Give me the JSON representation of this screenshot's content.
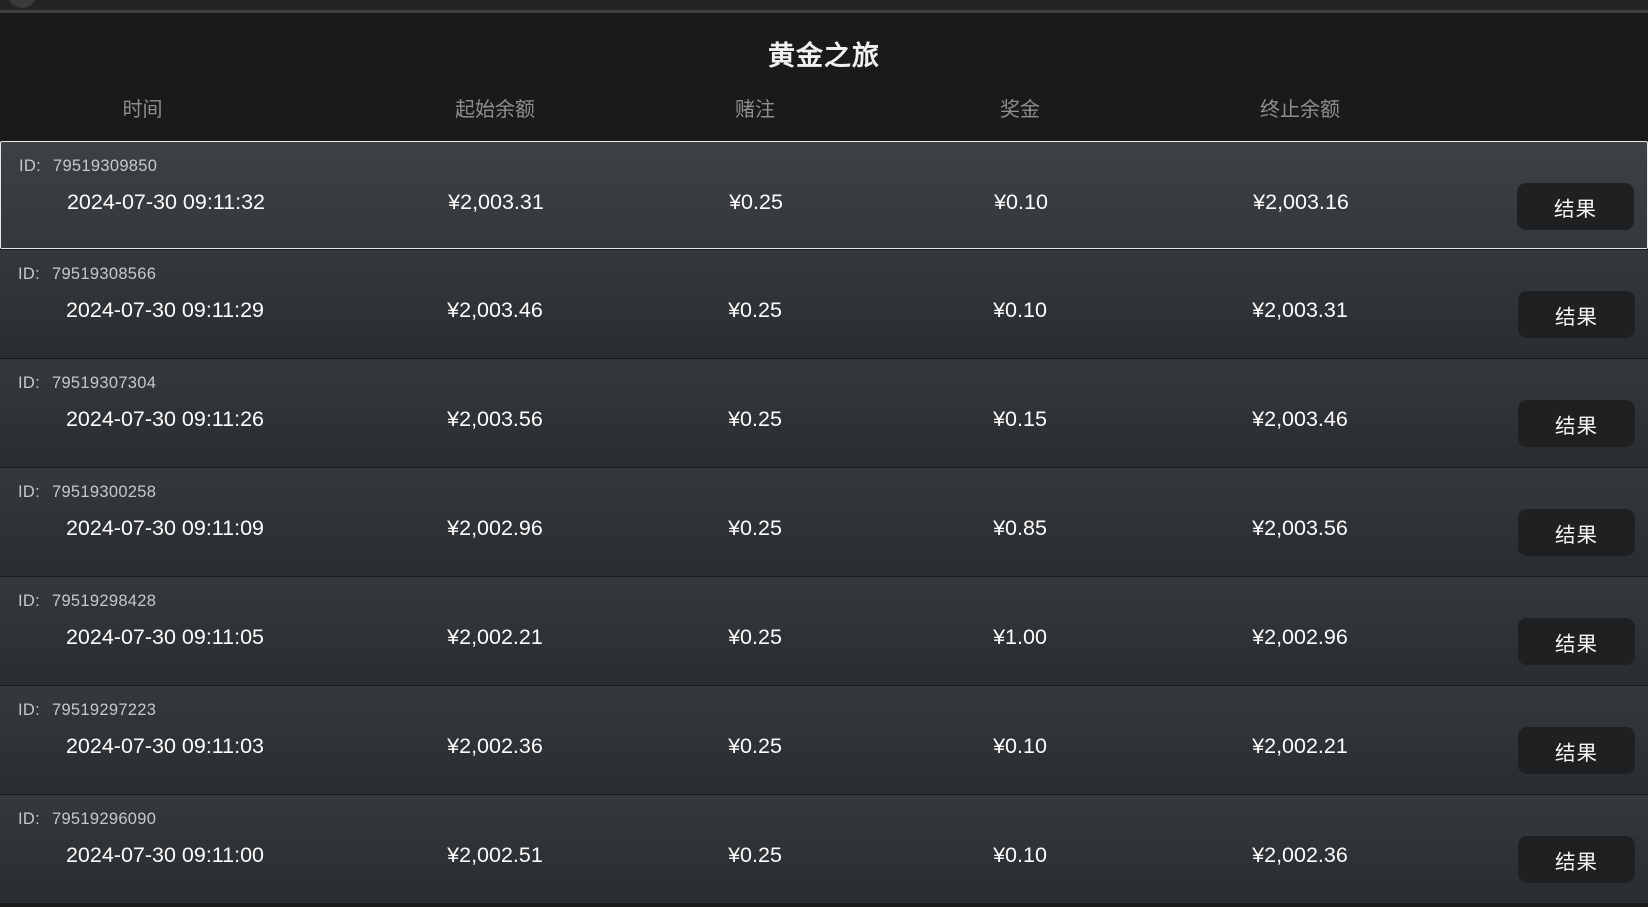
{
  "title": "黄金之旅",
  "columns": [
    "时间",
    "起始余额",
    "赌注",
    "奖金",
    "终止余额"
  ],
  "id_prefix": "ID:",
  "result_label": "结果",
  "rows": [
    {
      "id": "79519309850",
      "time": "2024-07-30 09:11:32",
      "start_balance": "¥2,003.31",
      "bet": "¥0.25",
      "win": "¥0.10",
      "end_balance": "¥2,003.16",
      "selected": true
    },
    {
      "id": "79519308566",
      "time": "2024-07-30 09:11:29",
      "start_balance": "¥2,003.46",
      "bet": "¥0.25",
      "win": "¥0.10",
      "end_balance": "¥2,003.31",
      "selected": false
    },
    {
      "id": "79519307304",
      "time": "2024-07-30 09:11:26",
      "start_balance": "¥2,003.56",
      "bet": "¥0.25",
      "win": "¥0.15",
      "end_balance": "¥2,003.46",
      "selected": false
    },
    {
      "id": "79519300258",
      "time": "2024-07-30 09:11:09",
      "start_balance": "¥2,002.96",
      "bet": "¥0.25",
      "win": "¥0.85",
      "end_balance": "¥2,003.56",
      "selected": false
    },
    {
      "id": "79519298428",
      "time": "2024-07-30 09:11:05",
      "start_balance": "¥2,002.21",
      "bet": "¥0.25",
      "win": "¥1.00",
      "end_balance": "¥2,002.96",
      "selected": false
    },
    {
      "id": "79519297223",
      "time": "2024-07-30 09:11:03",
      "start_balance": "¥2,002.36",
      "bet": "¥0.25",
      "win": "¥0.10",
      "end_balance": "¥2,002.21",
      "selected": false
    },
    {
      "id": "79519296090",
      "time": "2024-07-30 09:11:00",
      "start_balance": "¥2,002.51",
      "bet": "¥0.25",
      "win": "¥0.10",
      "end_balance": "¥2,002.36",
      "selected": false
    }
  ],
  "colors": {
    "page_bg": "#1a1a1c",
    "row_gradient_top": "#35393b",
    "row_gradient_bottom": "#2a2d2f",
    "selected_row_border": "#e8e8e8",
    "button_bg": "#1f2022",
    "header_text": "#8c8e90",
    "value_text": "#fcfcfd",
    "id_text": "#c7c8c9"
  }
}
